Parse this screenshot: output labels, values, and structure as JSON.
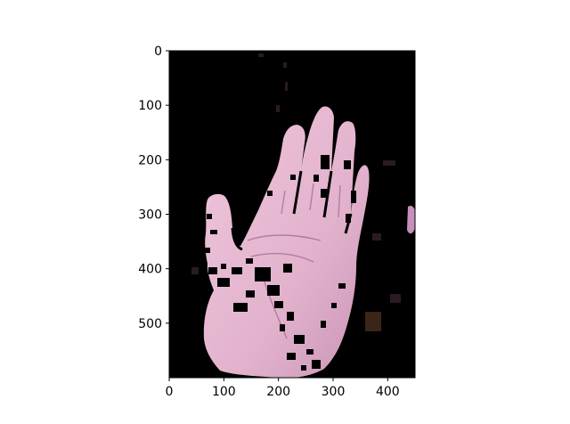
{
  "figure": {
    "image_content": "segmented hand (skin pixels kept, background masked black)",
    "colors": {
      "background": "#ffffff",
      "image_background": "#000000",
      "skin": "#e3b4cf",
      "skin_shadow": "#c98fb3",
      "crease": "#a86f95",
      "axis": "#000000"
    }
  },
  "axes": {
    "x": {
      "range": [
        0,
        450
      ],
      "ticks": [
        "0",
        "100",
        "200",
        "300",
        "400"
      ],
      "tick_values": [
        0,
        100,
        200,
        300,
        400
      ]
    },
    "y": {
      "range": [
        0,
        600
      ],
      "inverted": true,
      "ticks": [
        "0",
        "100",
        "200",
        "300",
        "400",
        "500"
      ],
      "tick_values": [
        0,
        100,
        200,
        300,
        400,
        500
      ]
    }
  }
}
